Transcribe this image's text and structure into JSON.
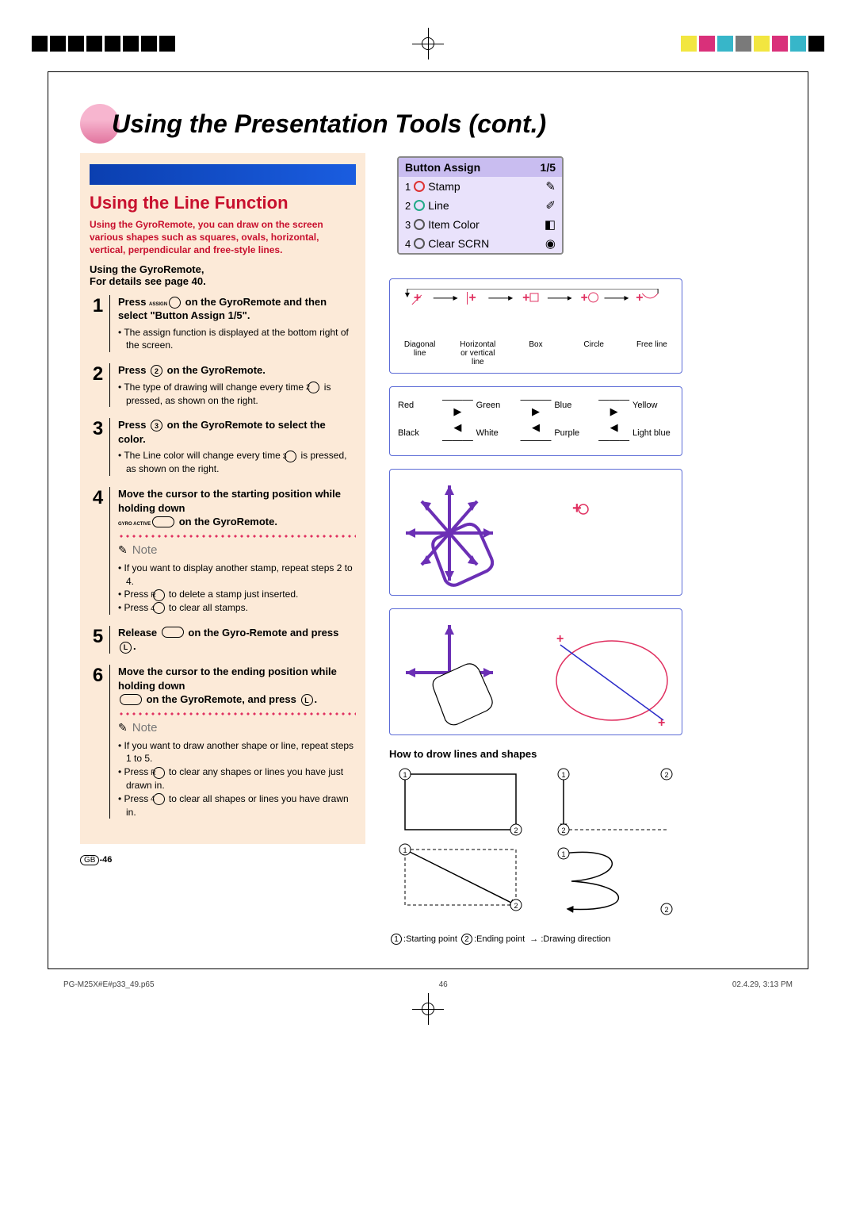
{
  "crop_colors_right": [
    "#f2e640",
    "#d9307a",
    "#37b6c9",
    "#7a7a7a",
    "#f2e640",
    "#d9307a",
    "#37b6c9",
    "#000000"
  ],
  "main_title": "Using the Presentation Tools (cont.)",
  "subhead": "Using the Line Function",
  "intro": "Using the GyroRemote, you can draw on the screen various shapes such as squares, ovals, horizontal, vertical, perpendicular and free-style lines.",
  "using_line1": "Using the GyroRemote,",
  "using_line2": "For details see page 40.",
  "steps": {
    "s1": {
      "num": "1",
      "head_a": "Press ",
      "head_b": " on the GyroRemote and then select \"Button Assign 1/5\".",
      "btn_top": "ASSIGN",
      "bullet": "The assign function is displayed at the bottom right of the screen."
    },
    "s2": {
      "num": "2",
      "head_a": "Press ",
      "head_b": " on the GyroRemote.",
      "bullets": [
        "The type of drawing will change every time",
        " is pressed, as shown on the right."
      ]
    },
    "s3": {
      "num": "3",
      "head_a": "Press ",
      "head_b": " on the GyroRemote to select the color.",
      "bullets": [
        "The Line color will change every time",
        " is pressed, as shown on the right."
      ]
    },
    "s4": {
      "num": "4",
      "head": "Move the cursor to the starting position while holding down",
      "head2": " on the GyroRemote.",
      "oval_label": "GYRO ACTIVE",
      "note_label": "Note",
      "notes": [
        "If you want to display another stamp, repeat steps 2 to 4.",
        "Press  to delete a stamp just inserted.",
        "Press  to clear all stamps."
      ]
    },
    "s5": {
      "num": "5",
      "head_a": "Release ",
      "head_b": " on the Gyro-Remote and press ",
      "head_c": "."
    },
    "s6": {
      "num": "6",
      "head": "Move the cursor to the ending position while holding down",
      "head2_a": " on the GyroRemote, and press ",
      "head2_b": ".",
      "note_label": "Note",
      "notes": [
        "If you want to draw another shape or line, repeat steps 1 to 5.",
        "Press  to clear any shapes or lines you have just drawn in.",
        "Press  to clear all shapes or lines you have drawn in."
      ]
    }
  },
  "menu": {
    "title": "Button Assign",
    "page": "1/5",
    "items": [
      {
        "n": "1",
        "ring": "r",
        "label": "Stamp",
        "icon": "✎"
      },
      {
        "n": "2",
        "ring": "g",
        "label": "Line",
        "icon": "✐"
      },
      {
        "n": "3",
        "ring": "",
        "label": "Item Color",
        "icon": "◧"
      },
      {
        "n": "4",
        "ring": "",
        "label": "Clear SCRN",
        "icon": "◉"
      }
    ]
  },
  "linetypes": {
    "labels": [
      "Diagonal line",
      "Horizontal or vertical line",
      "Box",
      "Circle",
      "Free line"
    ]
  },
  "colorflow": {
    "row1": [
      "Red",
      "Green",
      "Blue",
      "Yellow"
    ],
    "row2": [
      "Black",
      "White",
      "Purple",
      "Light blue"
    ]
  },
  "howto_title": "How to drow lines and shapes",
  "legend": {
    "starting": "Starting point",
    "ending": "Ending point",
    "drawing": "Drawing direction"
  },
  "footer_gb": "-46",
  "footer_file": "PG-M25X#E#p33_49.p65",
  "footer_page": "46",
  "footer_date": "02.4.29, 3:13 PM",
  "colors": {
    "red": "#c8102e",
    "peach": "#fcead8",
    "purple": "#6b2fb5",
    "frame": "#5b6bd6",
    "pink": "#e03060"
  }
}
